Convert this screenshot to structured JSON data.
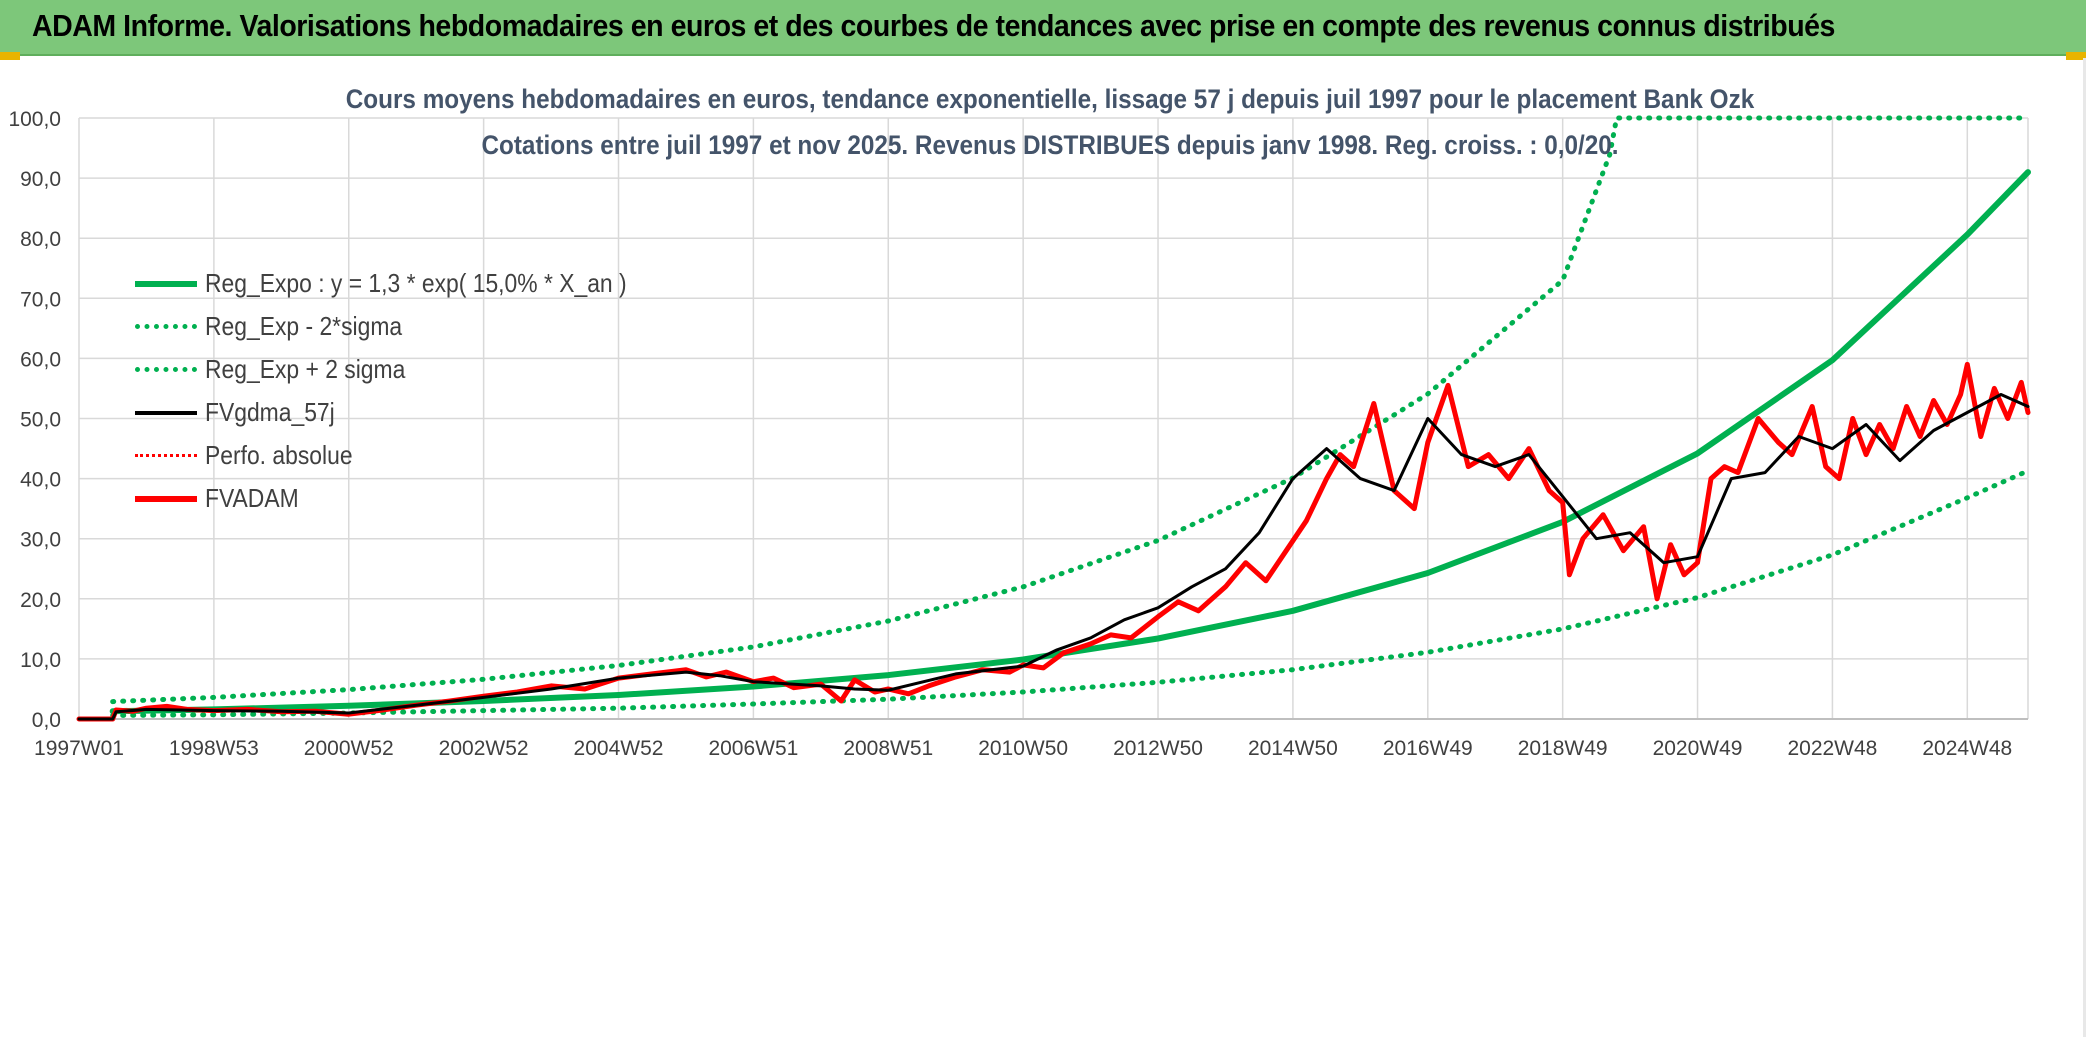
{
  "header": {
    "title": "ADAM Informe. Valorisations hebdomadaires en euros et des courbes de tendances avec prise en compte des revenus connus distribués"
  },
  "colors": {
    "header_bg": "#7dc77a",
    "reg_expo": "#00b050",
    "sigma_bands": "#00b050",
    "fvgdma": "#000000",
    "perfo": "#ff0000",
    "fvadam": "#ff0000"
  },
  "chart_data": {
    "type": "line",
    "title_line1": "Cours moyens hebdomadaires en euros, tendance exponentielle, lissage 57 j depuis juil 1997 pour le placement Bank Ozk",
    "title_line2": "Cotations entre juil 1997 et nov 2025. Revenus DISTRIBUES depuis janv 1998. Reg. croiss. : 0,0/20.",
    "ylim": [
      0,
      100
    ],
    "xlim": [
      1997.0,
      2025.9
    ],
    "grid": true,
    "legend_placement": "top-left",
    "y_ticks": [
      "0,0",
      "10,0",
      "20,0",
      "30,0",
      "40,0",
      "50,0",
      "60,0",
      "70,0",
      "80,0",
      "90,0",
      "100,0"
    ],
    "x_ticks": [
      {
        "label": "1997W01",
        "x": 1997.0
      },
      {
        "label": "1998W53",
        "x": 1999.0
      },
      {
        "label": "2000W52",
        "x": 2001.0
      },
      {
        "label": "2002W52",
        "x": 2003.0
      },
      {
        "label": "2004W52",
        "x": 2005.0
      },
      {
        "label": "2006W51",
        "x": 2007.0
      },
      {
        "label": "2008W51",
        "x": 2009.0
      },
      {
        "label": "2010W50",
        "x": 2011.0
      },
      {
        "label": "2012W50",
        "x": 2013.0
      },
      {
        "label": "2014W50",
        "x": 2015.0
      },
      {
        "label": "2016W49",
        "x": 2017.0
      },
      {
        "label": "2018W49",
        "x": 2019.0
      },
      {
        "label": "2020W49",
        "x": 2021.0
      },
      {
        "label": "2022W48",
        "x": 2023.0
      },
      {
        "label": "2024W48",
        "x": 2025.0
      }
    ],
    "series": [
      {
        "name": "Reg_Expo : y = 1,3 * exp( 15,0% *  X_an )",
        "style": "solid-thick",
        "x": [
          1997.5,
          1999,
          2001,
          2003,
          2005,
          2007,
          2009,
          2011,
          2013,
          2015,
          2017,
          2019,
          2021,
          2023,
          2025,
          2025.9
        ],
        "values": [
          1.3,
          1.6,
          2.2,
          3.0,
          4.0,
          5.4,
          7.3,
          9.9,
          13.4,
          18.0,
          24.3,
          32.8,
          44.2,
          59.7,
          80.6,
          91.0
        ]
      },
      {
        "name": "Reg_Exp - 2*sigma",
        "style": "dotted",
        "x": [
          1997.5,
          1999,
          2001,
          2003,
          2005,
          2007,
          2009,
          2011,
          2013,
          2015,
          2017,
          2019,
          2021,
          2023,
          2025,
          2025.9
        ],
        "values": [
          0.6,
          0.7,
          1.0,
          1.4,
          1.8,
          2.5,
          3.3,
          4.5,
          6.1,
          8.2,
          11.1,
          15.0,
          20.2,
          27.3,
          36.8,
          41.3
        ]
      },
      {
        "name": "Reg_Exp + 2 sigma",
        "style": "dotted",
        "x": [
          1997.5,
          1999,
          2001,
          2003,
          2005,
          2007,
          2009,
          2011,
          2013,
          2015,
          2017,
          2019,
          2019.7,
          2019.8,
          2025.9
        ],
        "values": [
          2.9,
          3.6,
          4.9,
          6.6,
          8.9,
          12.0,
          16.3,
          22.0,
          29.7,
          40.1,
          54.1,
          73.0,
          94.0,
          100.0,
          100.0
        ]
      },
      {
        "name": "FVgdma_57j",
        "style": "solid",
        "x": [
          1997.0,
          1997.5,
          1997.55,
          1998.0,
          1998.5,
          1999.0,
          2000.0,
          2001.0,
          2002.0,
          2003.0,
          2004.0,
          2005.0,
          2006.0,
          2006.5,
          2007.0,
          2008.0,
          2008.5,
          2009.0,
          2010.0,
          2011.0,
          2011.5,
          2012.0,
          2012.5,
          2013.0,
          2013.5,
          2014.0,
          2014.5,
          2015.0,
          2015.5,
          2016.0,
          2016.5,
          2017.0,
          2017.5,
          2018.0,
          2018.5,
          2019.0,
          2019.5,
          2020.0,
          2020.5,
          2021.0,
          2021.5,
          2022.0,
          2022.5,
          2023.0,
          2023.5,
          2024.0,
          2024.5,
          2025.0,
          2025.5,
          2025.9
        ],
        "values": [
          0.0,
          0.0,
          1.2,
          1.6,
          1.5,
          1.4,
          1.3,
          1.0,
          2.3,
          3.6,
          5.0,
          6.8,
          7.8,
          7.2,
          6.2,
          5.5,
          5.0,
          4.8,
          7.5,
          8.8,
          11.5,
          13.5,
          16.5,
          18.5,
          22.0,
          25.0,
          31.0,
          40.0,
          45.0,
          40.0,
          38.0,
          50.0,
          44.0,
          42.0,
          44.0,
          37.0,
          30.0,
          31.0,
          26.0,
          27.0,
          40.0,
          41.0,
          47.0,
          45.0,
          49.0,
          43.0,
          48.0,
          51.0,
          54.0,
          52.0
        ]
      },
      {
        "name": "Perfo. absolue",
        "style": "dotted-red",
        "x": [],
        "values": []
      },
      {
        "name": "FVADAM",
        "style": "solid-thick-red",
        "x": [
          1997.0,
          1997.5,
          1997.55,
          1997.8,
          1998.0,
          1998.3,
          1998.6,
          1999.0,
          1999.5,
          2000.0,
          2000.5,
          2001.0,
          2001.5,
          2002.0,
          2002.5,
          2003.0,
          2003.5,
          2004.0,
          2004.5,
          2005.0,
          2005.5,
          2006.0,
          2006.3,
          2006.6,
          2007.0,
          2007.3,
          2007.6,
          2008.0,
          2008.3,
          2008.5,
          2008.8,
          2009.0,
          2009.3,
          2009.6,
          2010.0,
          2010.4,
          2010.8,
          2011.0,
          2011.3,
          2011.6,
          2012.0,
          2012.3,
          2012.6,
          2013.0,
          2013.3,
          2013.6,
          2014.0,
          2014.3,
          2014.6,
          2014.9,
          2015.2,
          2015.5,
          2015.7,
          2015.9,
          2016.2,
          2016.5,
          2016.8,
          2017.0,
          2017.3,
          2017.6,
          2017.9,
          2018.2,
          2018.5,
          2018.8,
          2019.0,
          2019.1,
          2019.3,
          2019.6,
          2019.9,
          2020.2,
          2020.4,
          2020.6,
          2020.8,
          2021.0,
          2021.2,
          2021.4,
          2021.6,
          2021.9,
          2022.2,
          2022.4,
          2022.7,
          2022.9,
          2023.1,
          2023.3,
          2023.5,
          2023.7,
          2023.9,
          2024.1,
          2024.3,
          2024.5,
          2024.7,
          2024.9,
          2025.0,
          2025.2,
          2025.4,
          2025.6,
          2025.8,
          2025.9
        ],
        "values": [
          0.0,
          0.0,
          1.5,
          1.3,
          1.8,
          2.1,
          1.6,
          1.4,
          1.6,
          1.2,
          1.3,
          0.8,
          1.5,
          2.3,
          3.0,
          3.8,
          4.5,
          5.5,
          5.0,
          6.8,
          7.5,
          8.2,
          7.0,
          7.8,
          6.2,
          6.8,
          5.2,
          5.8,
          3.0,
          6.5,
          4.5,
          5.0,
          4.2,
          5.5,
          7.0,
          8.2,
          7.8,
          9.0,
          8.5,
          11.0,
          12.5,
          14.0,
          13.5,
          17.0,
          19.5,
          18.0,
          22.0,
          26.0,
          23.0,
          28.0,
          33.0,
          40.0,
          44.0,
          42.0,
          52.5,
          38.0,
          35.0,
          46.0,
          55.5,
          42.0,
          44.0,
          40.0,
          45.0,
          38.0,
          36.0,
          24.0,
          30.0,
          34.0,
          28.0,
          32.0,
          20.0,
          29.0,
          24.0,
          26.0,
          40.0,
          42.0,
          41.0,
          50.0,
          46.0,
          44.0,
          52.0,
          42.0,
          40.0,
          50.0,
          44.0,
          49.0,
          45.0,
          52.0,
          47.0,
          53.0,
          49.0,
          54.0,
          59.0,
          47.0,
          55.0,
          50.0,
          56.0,
          51.0
        ]
      }
    ]
  }
}
